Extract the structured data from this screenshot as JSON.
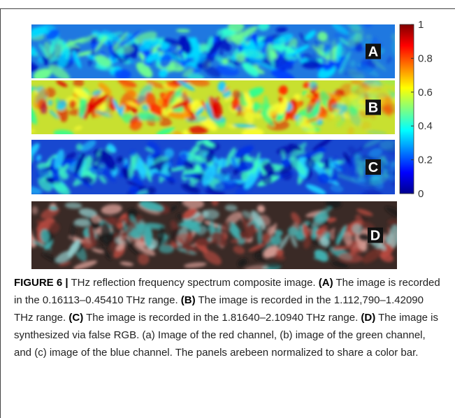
{
  "figure": {
    "panels": [
      {
        "label": "A"
      },
      {
        "label": "B"
      },
      {
        "label": "C"
      },
      {
        "label": "D"
      }
    ],
    "colorbar": {
      "lim": [
        0,
        1
      ],
      "ticks": [
        0,
        0.2,
        0.4,
        0.6,
        0.8,
        1
      ]
    }
  },
  "caption": {
    "runs": [
      {
        "text": "FIGURE 6 |",
        "bold": true
      },
      {
        "text": " THz reflection frequency spectrum composite image. ",
        "bold": false
      },
      {
        "text": "(A)",
        "bold": true
      },
      {
        "text": " The image is recorded in the 0.16113–0.45410 THz range. ",
        "bold": false
      },
      {
        "text": "(B)",
        "bold": true
      },
      {
        "text": " The image is recorded in the 1.112,790–1.42090 THz range. ",
        "bold": false
      },
      {
        "text": "(C)",
        "bold": true
      },
      {
        "text": " The image is recorded in the 1.81640–2.10940 THz range. ",
        "bold": false
      },
      {
        "text": "(D)",
        "bold": true
      },
      {
        "text": " The image is synthesized via false RGB. (a) Image of the red channel, (b) image of the green channel, and (c) image of the blue channel. The panels arebeen normalized to share a color bar.",
        "bold": false
      }
    ]
  }
}
